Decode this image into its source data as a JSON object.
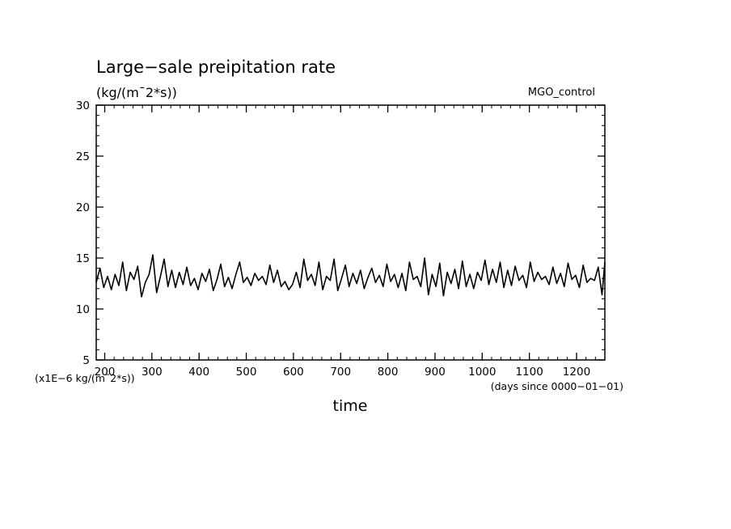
{
  "chart_data": {
    "type": "line",
    "title": "Large−sale preipitation rate",
    "units_label": "(kg/(m¯2*s))",
    "run_label": "MGO_control",
    "xlabel": "time",
    "x_units_label": "(days since 0000−01−01)",
    "y_scale_label": "(x1E−6 kg/(m¯2*s))",
    "xlim": [
      182,
      1260
    ],
    "ylim": [
      5,
      30
    ],
    "x_ticks": [
      200,
      300,
      400,
      500,
      600,
      700,
      800,
      900,
      1000,
      1100,
      1200
    ],
    "x_tick_labels": [
      "200",
      "300",
      "400",
      "500",
      "600",
      "700",
      "800",
      "900",
      "1000",
      "1100",
      "1200"
    ],
    "y_ticks": [
      5,
      10,
      15,
      20,
      25,
      30
    ],
    "y_tick_labels": [
      "5",
      "10",
      "15",
      "20",
      "25",
      "30"
    ],
    "x_minor_step": 20,
    "y_minor_step": 1,
    "grid": false,
    "series": [
      {
        "color": "#000000",
        "x": [
          182,
          190,
          198,
          206,
          214,
          222,
          230,
          238,
          246,
          254,
          262,
          270,
          278,
          286,
          294,
          302,
          310,
          318,
          326,
          334,
          342,
          350,
          358,
          366,
          374,
          382,
          390,
          398,
          406,
          414,
          422,
          430,
          438,
          446,
          454,
          462,
          470,
          478,
          486,
          494,
          502,
          510,
          518,
          526,
          534,
          542,
          550,
          558,
          566,
          574,
          582,
          590,
          598,
          606,
          614,
          622,
          630,
          638,
          646,
          654,
          662,
          670,
          678,
          686,
          694,
          702,
          710,
          718,
          726,
          734,
          742,
          750,
          758,
          766,
          774,
          782,
          790,
          798,
          806,
          814,
          822,
          830,
          838,
          846,
          854,
          862,
          870,
          878,
          886,
          894,
          902,
          910,
          918,
          926,
          934,
          942,
          950,
          958,
          966,
          974,
          982,
          990,
          998,
          1006,
          1014,
          1022,
          1030,
          1038,
          1046,
          1054,
          1062,
          1070,
          1078,
          1086,
          1094,
          1102,
          1110,
          1118,
          1126,
          1134,
          1142,
          1150,
          1158,
          1166,
          1174,
          1182,
          1190,
          1198,
          1206,
          1214,
          1222,
          1230,
          1238,
          1246,
          1254,
          1260
        ],
        "y": [
          12.6,
          14.0,
          12.1,
          13.2,
          11.9,
          13.4,
          12.3,
          14.6,
          11.8,
          13.6,
          12.9,
          14.2,
          11.2,
          12.6,
          13.4,
          15.3,
          11.6,
          13.2,
          14.9,
          12.2,
          13.8,
          12.1,
          13.6,
          12.4,
          14.1,
          12.3,
          13.0,
          11.9,
          13.5,
          12.7,
          13.9,
          11.8,
          12.9,
          14.4,
          12.2,
          13.1,
          12.0,
          13.4,
          14.6,
          12.6,
          13.1,
          12.3,
          13.5,
          12.8,
          13.2,
          12.4,
          14.3,
          12.6,
          13.8,
          12.2,
          12.7,
          11.9,
          12.4,
          13.6,
          12.1,
          14.9,
          12.8,
          13.4,
          12.3,
          14.6,
          11.9,
          13.2,
          12.8,
          14.9,
          11.8,
          13.0,
          14.3,
          12.2,
          13.5,
          12.5,
          13.8,
          12.0,
          13.1,
          14.0,
          12.6,
          13.3,
          12.2,
          14.4,
          12.7,
          13.4,
          12.1,
          13.5,
          11.8,
          14.6,
          12.9,
          13.2,
          12.2,
          15.0,
          11.4,
          13.4,
          12.2,
          14.5,
          11.3,
          13.6,
          12.5,
          13.9,
          12.0,
          14.7,
          12.2,
          13.4,
          12.0,
          13.6,
          12.8,
          14.8,
          12.4,
          13.9,
          12.6,
          14.6,
          12.1,
          13.8,
          12.3,
          14.2,
          12.8,
          13.3,
          12.1,
          14.6,
          12.7,
          13.6,
          12.9,
          13.2,
          12.4,
          14.1,
          12.5,
          13.5,
          12.2,
          14.5,
          12.9,
          13.3,
          12.1,
          14.3,
          12.6,
          13.0,
          12.8,
          14.1,
          11.4,
          14.6
        ]
      }
    ]
  }
}
